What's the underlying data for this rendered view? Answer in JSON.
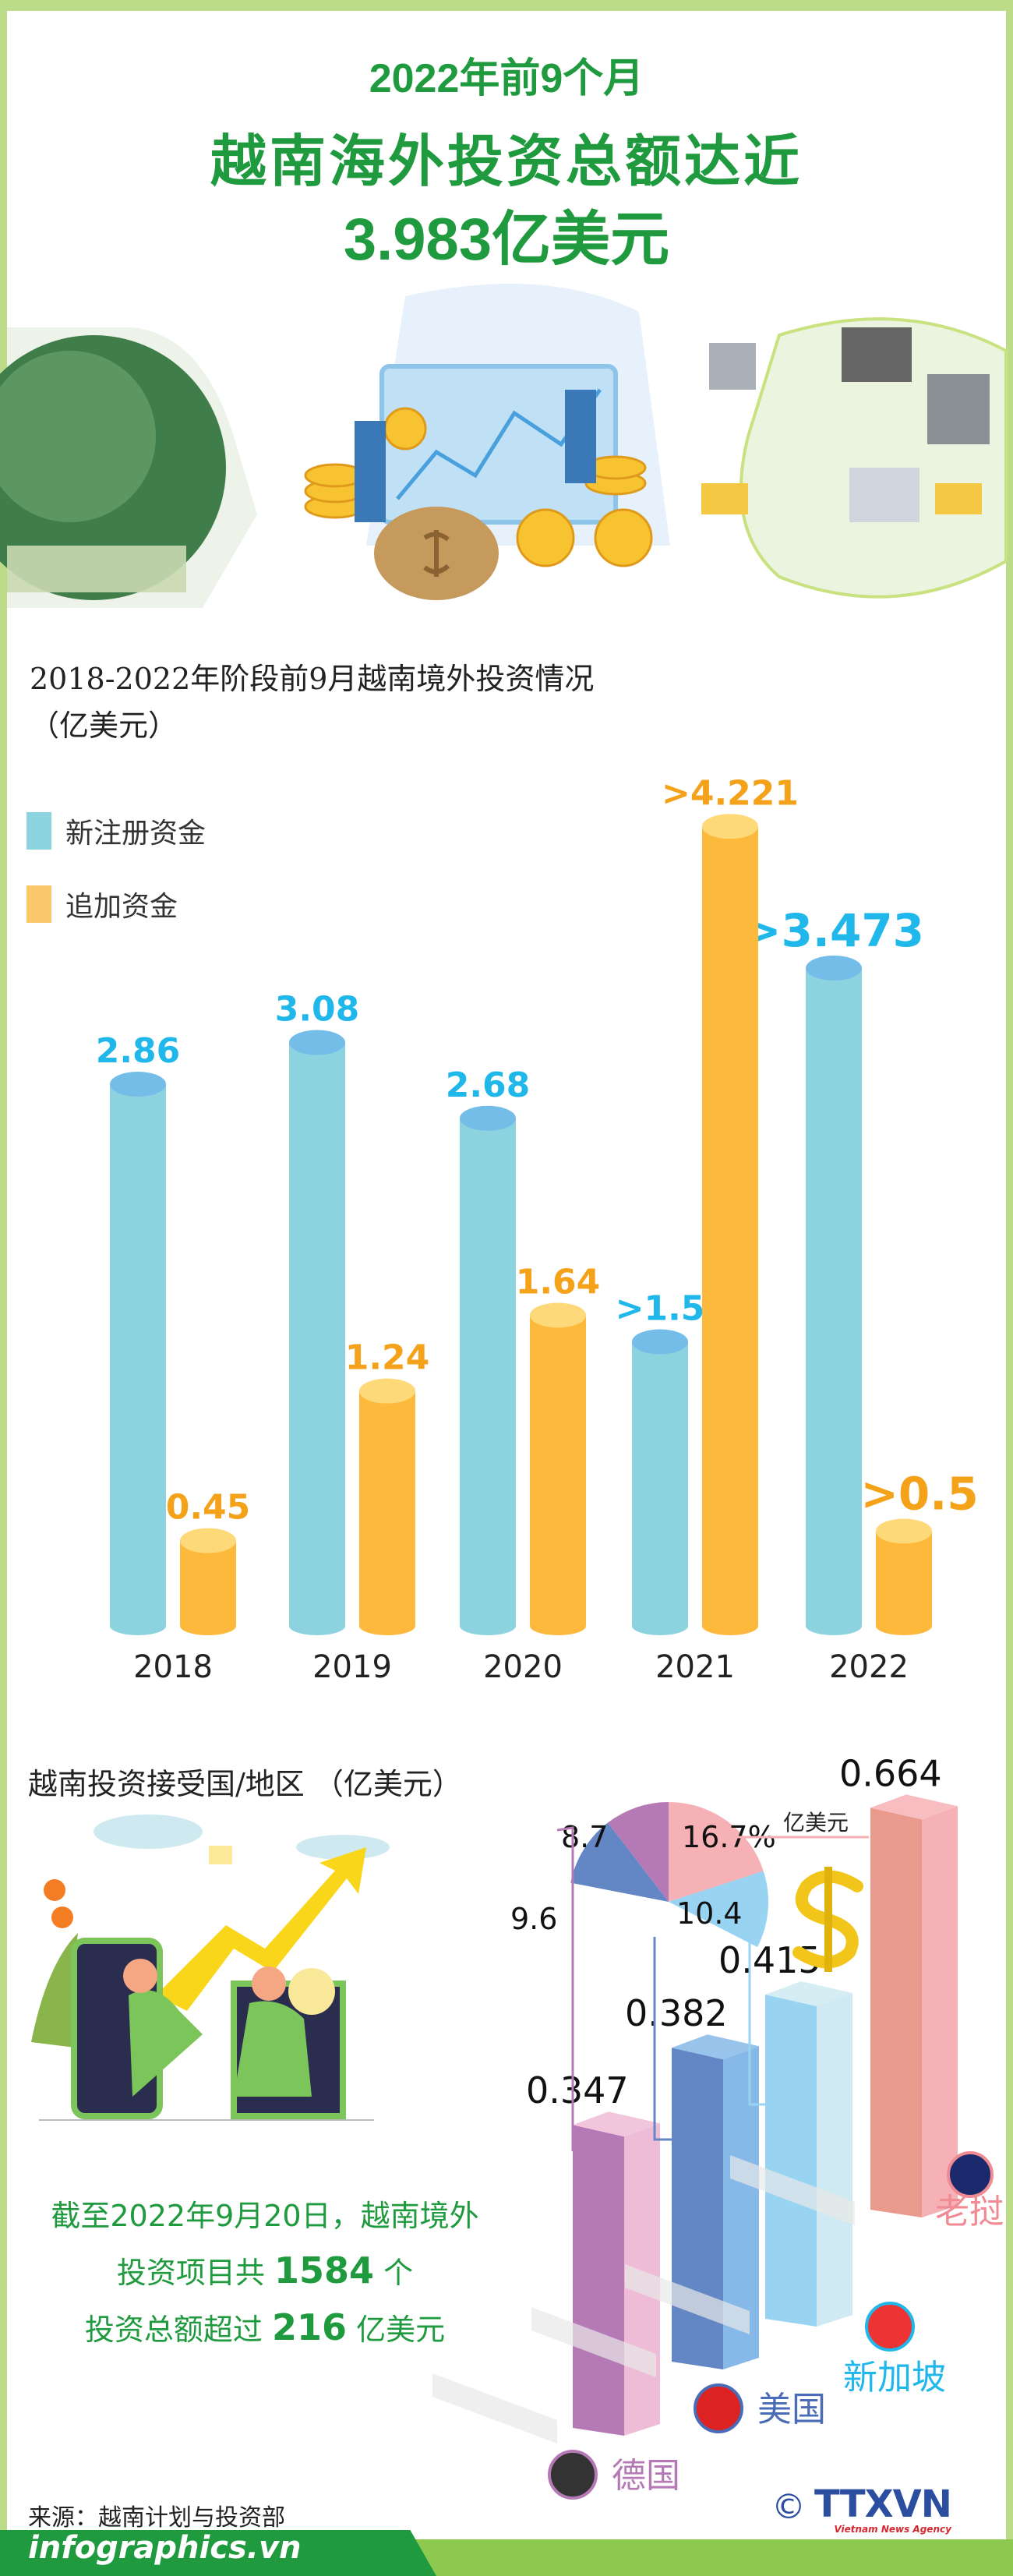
{
  "header": {
    "line1": "2022年前9个月",
    "line2": "越南海外投资总额达近",
    "line3": "3.983亿美元"
  },
  "colors": {
    "new_capital": "#8dd3df",
    "additional_capital": "#fdb93b",
    "title_green": "#1f9a3e",
    "blue_label": "#20b7ea",
    "orange_label": "#f5a21b"
  },
  "chart_data": [
    {
      "type": "bar",
      "title": "2018-2022年阶段前9月越南境外投资情况",
      "subtitle": "（亿美元）",
      "categories": [
        "2018",
        "2019",
        "2020",
        "2021",
        "2022"
      ],
      "legend_placement": "top-left",
      "grid": false,
      "series": [
        {
          "name": "新注册资金",
          "values": [
            2.86,
            3.08,
            2.68,
            1.5,
            3.473
          ],
          "labels": [
            "2.86",
            "3.08",
            "2.68",
            ">1.5",
            ">3.473"
          ]
        },
        {
          "name": "追加资金",
          "values": [
            0.45,
            1.24,
            1.64,
            4.221,
            0.5
          ],
          "labels": [
            "0.45",
            "1.24",
            "1.64",
            ">4.221",
            ">0.5"
          ]
        }
      ]
    },
    {
      "type": "bar",
      "title": "越南投资接受国/地区 （亿美元）",
      "unit": "亿美元",
      "categories": [
        "德国",
        "美国",
        "新加坡",
        "老挝"
      ],
      "values": [
        0.347,
        0.382,
        0.415,
        0.664
      ],
      "labels": [
        "0.347",
        "0.382",
        "0.415",
        "0.664"
      ],
      "flags": [
        "germany-flag-icon",
        "usa-flag-icon",
        "singapore-flag-icon",
        "laos-flag-icon"
      ],
      "colors": [
        "#b57ab6",
        "#6386c4",
        "#98d3f2",
        "#f6b1b6"
      ],
      "pie": {
        "type": "pie",
        "values": [
          16.7,
          10.4,
          9.6,
          8.7
        ],
        "labels": [
          "16.7%",
          "10.4",
          "9.6",
          "8.7"
        ],
        "colors": [
          "#f6b1b6",
          "#98d3f2",
          "#6386c4",
          "#b57ab6"
        ]
      }
    }
  ],
  "summary": {
    "line1": "截至2022年9月20日，越南境外",
    "line2_pre": "投资项目共",
    "line2_num": "1584",
    "line2_post": "个",
    "line3_pre": "投资总额超过",
    "line3_num": "216",
    "line3_post": "亿美元"
  },
  "source": "来源：越南计划与投资部",
  "footer": {
    "site": "infographics.vn",
    "copyright": "©",
    "logo": "TTXVN",
    "logo_sub": "Vietnam News Agency"
  }
}
